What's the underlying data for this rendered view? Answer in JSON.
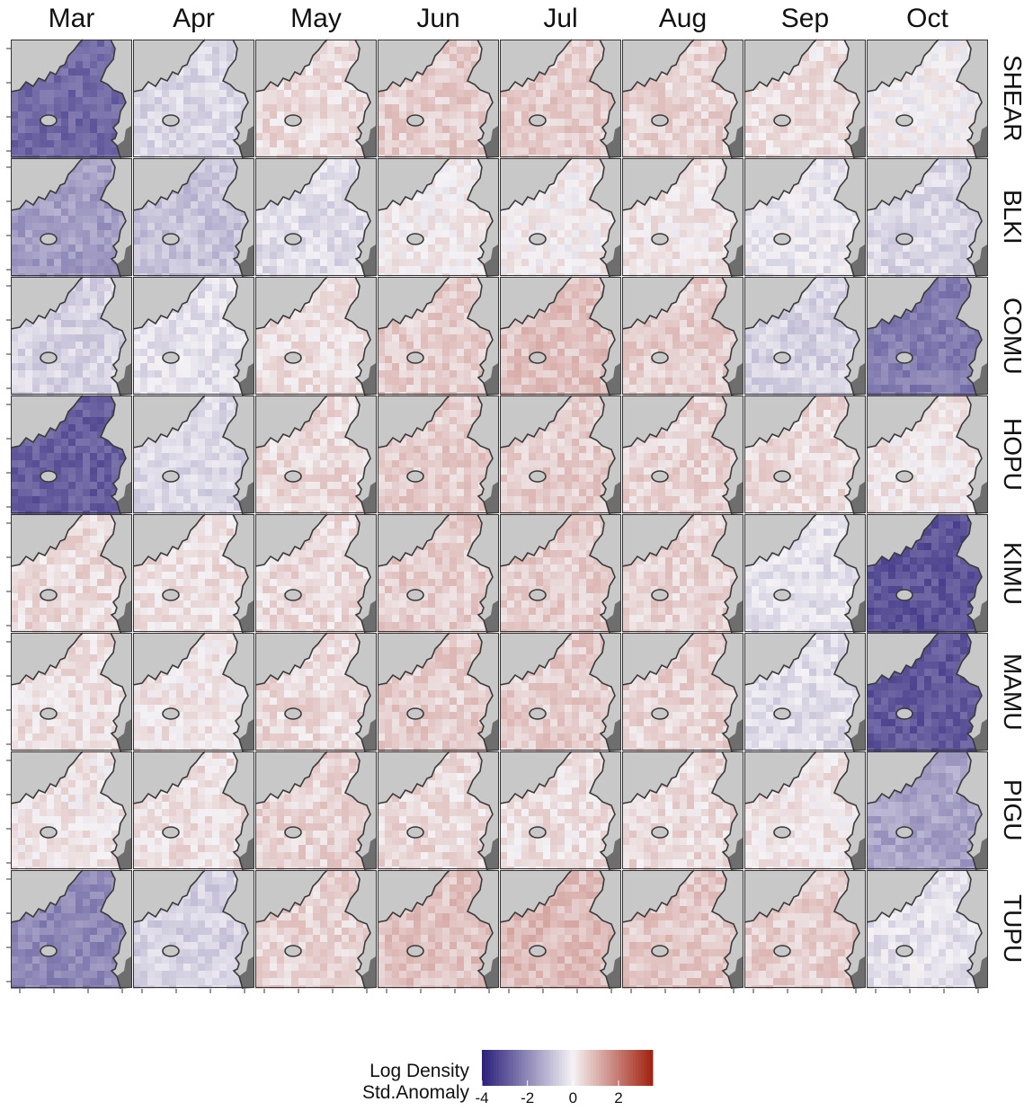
{
  "chart_data": {
    "type": "heatmap",
    "title": "",
    "xlabel": "",
    "ylabel": "",
    "columns": [
      "Mar",
      "Apr",
      "May",
      "Jun",
      "Jul",
      "Aug",
      "Sep",
      "Oct"
    ],
    "rows": [
      "SHEAR",
      "BLKI",
      "COMU",
      "HOPU",
      "KIMU",
      "MAMU",
      "PIGU",
      "TUPU"
    ],
    "mean_anomaly": [
      [
        -2.6,
        -0.5,
        0.4,
        0.6,
        0.6,
        0.5,
        0.3,
        0.0
      ],
      [
        -1.6,
        -0.9,
        -0.4,
        0.1,
        0.1,
        0.2,
        -0.2,
        -0.5
      ],
      [
        -0.6,
        -0.3,
        0.3,
        0.6,
        0.8,
        0.6,
        -0.6,
        -2.2
      ],
      [
        -2.8,
        -0.5,
        0.4,
        0.6,
        0.6,
        0.5,
        0.4,
        0.2
      ],
      [
        0.4,
        0.3,
        0.4,
        0.6,
        0.6,
        0.5,
        -0.3,
        -3.0
      ],
      [
        0.3,
        0.2,
        0.4,
        0.6,
        0.6,
        0.5,
        -0.4,
        -2.9
      ],
      [
        0.2,
        0.3,
        0.5,
        0.4,
        0.3,
        0.4,
        0.2,
        -1.5
      ],
      [
        -2.0,
        -0.6,
        0.5,
        0.8,
        0.9,
        0.7,
        0.6,
        -0.3
      ]
    ],
    "legend": {
      "title": [
        "Log Density",
        "Std.Anomaly"
      ],
      "ticks": [
        "-4",
        "-2",
        "0",
        "2"
      ],
      "tick_values": [
        -4,
        -2,
        0,
        2
      ],
      "range": [
        -4,
        3.5
      ],
      "colors": {
        "low": "#2a1f7a",
        "mid": "#f4f2f5",
        "high": "#a0210f"
      },
      "placement": "bottom-center"
    },
    "colors": {
      "land": "#c8c8c8",
      "shore": "#3a3a3a",
      "dark_land": "#6e6e6e",
      "panel_border": "#333333"
    }
  }
}
